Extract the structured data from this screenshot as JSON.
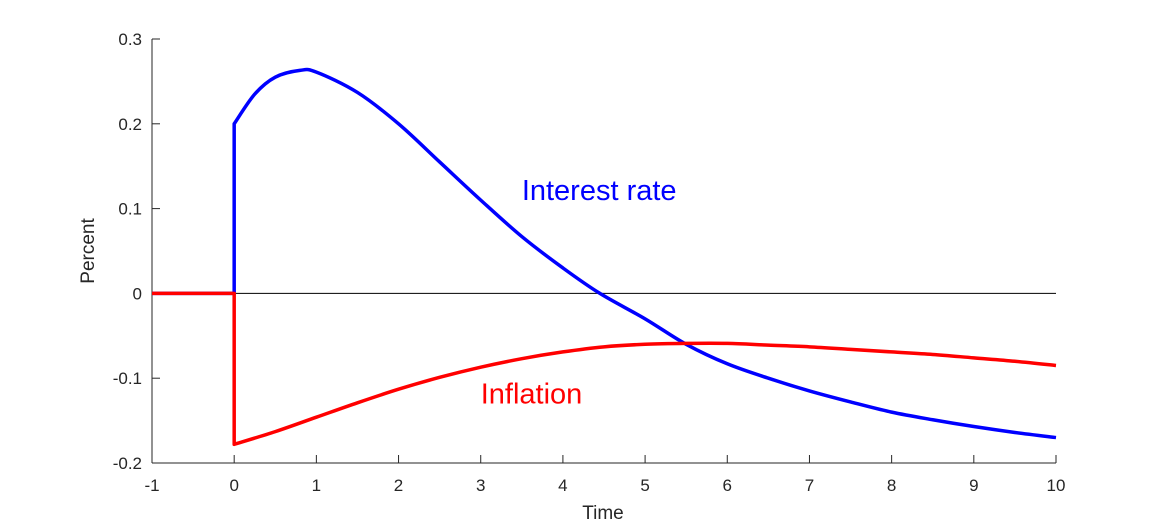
{
  "chart_data": {
    "type": "line",
    "title": "",
    "xlabel": "Time",
    "ylabel": "Percent",
    "xlim": [
      -1,
      10
    ],
    "ylim": [
      -0.2,
      0.3
    ],
    "xticks": [
      -1,
      0,
      1,
      2,
      3,
      4,
      5,
      6,
      7,
      8,
      9,
      10
    ],
    "xtick_labels": [
      "-1",
      "0",
      "1",
      "2",
      "3",
      "4",
      "5",
      "6",
      "7",
      "8",
      "9",
      "10"
    ],
    "yticks": [
      -0.2,
      -0.1,
      0,
      0.1,
      0.2,
      0.3
    ],
    "ytick_labels": [
      "-0.2",
      "-0.1",
      "0",
      "0.1",
      "0.2",
      "0.3"
    ],
    "grid": false,
    "zero_line": true,
    "series": [
      {
        "name": "Interest rate",
        "color": "#0000ff",
        "x": [
          -1,
          0,
          0,
          0.25,
          0.5,
          0.8,
          1,
          1.5,
          2,
          2.5,
          3,
          3.5,
          4,
          4.45,
          5,
          5.5,
          6,
          6.5,
          7,
          7.5,
          8,
          8.5,
          9,
          9.5,
          10
        ],
        "y": [
          0,
          0,
          0.2,
          0.235,
          0.255,
          0.263,
          0.261,
          0.237,
          0.2,
          0.155,
          0.11,
          0.067,
          0.03,
          0,
          -0.03,
          -0.06,
          -0.083,
          -0.1,
          -0.115,
          -0.128,
          -0.14,
          -0.149,
          -0.157,
          -0.164,
          -0.17
        ]
      },
      {
        "name": "Inflation",
        "color": "#ff0000",
        "x": [
          -1,
          0,
          0,
          0.5,
          1,
          1.5,
          2,
          2.5,
          3,
          3.5,
          4,
          4.5,
          5,
          5.5,
          6,
          6.5,
          7,
          7.5,
          8,
          8.5,
          9,
          9.5,
          10
        ],
        "y": [
          0,
          0,
          -0.178,
          -0.163,
          -0.146,
          -0.129,
          -0.113,
          -0.099,
          -0.087,
          -0.077,
          -0.069,
          -0.063,
          -0.06,
          -0.059,
          -0.059,
          -0.061,
          -0.063,
          -0.066,
          -0.069,
          -0.072,
          -0.076,
          -0.08,
          -0.085
        ]
      }
    ],
    "annotations": [
      {
        "text": "Interest rate",
        "x": 3.5,
        "y": 0.11,
        "color": "#0000ff"
      },
      {
        "text": "Inflation",
        "x": 3,
        "y": -0.13,
        "color": "#ff0000"
      }
    ]
  }
}
